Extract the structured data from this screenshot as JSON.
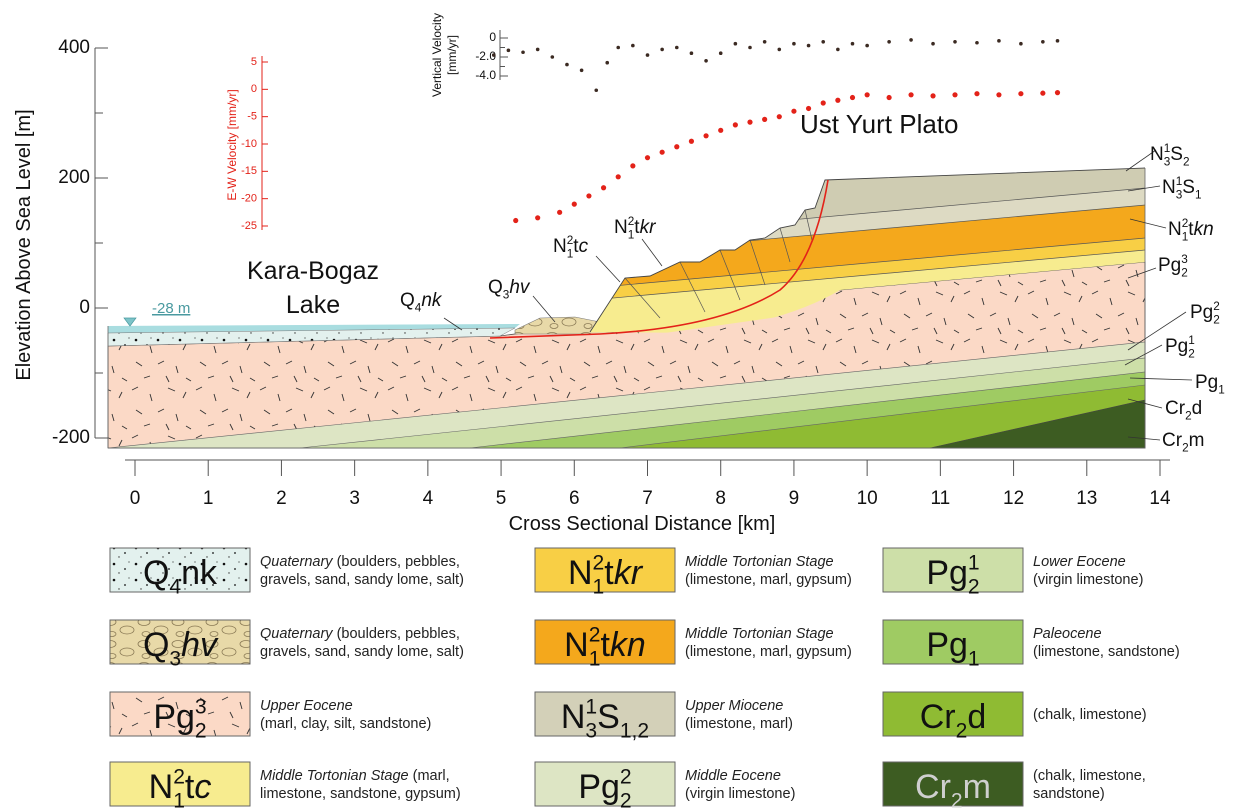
{
  "axes": {
    "y_label": "Elevation Above Sea Level [m]",
    "ylim": [
      -200,
      400
    ],
    "y_ticks": [
      400,
      200,
      0,
      -200
    ],
    "y_minor_ticks": [
      300,
      100,
      -100
    ],
    "x_label": "Cross Sectional Distance [km]",
    "xlim": [
      0,
      14
    ],
    "x_ticks": [
      0,
      1,
      2,
      3,
      4,
      5,
      6,
      7,
      8,
      9,
      10,
      11,
      12,
      13,
      14
    ]
  },
  "velocity": {
    "ew": {
      "label": "E-W Velocity [mm/yr]",
      "ylim": [
        -25,
        5
      ],
      "ticks": [
        5,
        0,
        -5,
        -10,
        -15,
        -20,
        -25
      ],
      "color": "#e32219",
      "x": [
        5.2,
        5.5,
        5.8,
        6.0,
        6.2,
        6.4,
        6.6,
        6.8,
        7.0,
        7.2,
        7.4,
        7.6,
        7.8,
        8.0,
        8.2,
        8.4,
        8.6,
        8.8,
        9.0,
        9.2,
        9.4,
        9.6,
        9.8,
        10.0,
        10.3,
        10.6,
        10.9,
        11.2,
        11.5,
        11.8,
        12.1,
        12.4,
        12.6
      ],
      "values": [
        -24,
        -23.5,
        -22.5,
        -21,
        -19.5,
        -18,
        -16,
        -14,
        -12.5,
        -11.5,
        -10.5,
        -9.5,
        -8.5,
        -7.5,
        -6.5,
        -6,
        -5.5,
        -5,
        -4,
        -3.5,
        -2.5,
        -2,
        -1.5,
        -1,
        -1.5,
        -1,
        -1.2,
        -1,
        -0.8,
        -1,
        -0.8,
        -0.7,
        -0.6
      ]
    },
    "vertical": {
      "label": [
        "Vertical Velocity",
        "[mm/yr]"
      ],
      "ylim": [
        -4,
        0
      ],
      "ticks": [
        0,
        {
          "value": -2,
          "label": "-2.0"
        },
        {
          "value": -4,
          "label": "-4.0"
        }
      ],
      "minor_ticks": [
        -1,
        -3
      ],
      "color": "#3b2a22",
      "x": [
        4.9,
        5.1,
        5.3,
        5.5,
        5.7,
        5.9,
        6.1,
        6.3,
        6.45,
        6.6,
        6.8,
        7.0,
        7.2,
        7.4,
        7.6,
        7.8,
        8.0,
        8.2,
        8.4,
        8.6,
        8.8,
        9.0,
        9.2,
        9.4,
        9.6,
        9.8,
        10.0,
        10.3,
        10.6,
        10.9,
        11.2,
        11.5,
        11.8,
        12.1,
        12.4,
        12.6
      ],
      "values": [
        -1.8,
        -1.3,
        -1.5,
        -1.2,
        -2.0,
        -2.8,
        -3.4,
        -5.5,
        -2.6,
        -1.0,
        -0.8,
        -1.8,
        -1.2,
        -1.0,
        -1.6,
        -2.4,
        -1.6,
        -0.6,
        -1.0,
        -0.4,
        -1.2,
        -0.6,
        -0.8,
        -0.4,
        -1.2,
        -0.6,
        -0.8,
        -0.4,
        -0.2,
        -0.6,
        -0.4,
        -0.5,
        -0.3,
        -0.6,
        -0.4,
        -0.3
      ]
    }
  },
  "section": {
    "title": "Ust Yurt Plato",
    "lake": [
      "Kara-Bogaz",
      "Lake"
    ],
    "water_level": "-28 m",
    "labels": [
      [
        {
          "text": "N"
        },
        {
          "sup": "1",
          "sub": "3"
        },
        {
          "text": "S"
        },
        {
          "sub": "2"
        }
      ],
      [
        {
          "text": "N"
        },
        {
          "sup": "1",
          "sub": "3"
        },
        {
          "text": "S"
        },
        {
          "sub": "1"
        }
      ],
      [
        {
          "text": "N"
        },
        {
          "sup": "2",
          "sub": "1"
        },
        {
          "text": "t"
        },
        {
          "text": "kn",
          "italic": true
        }
      ],
      [
        {
          "text": "Pg"
        },
        {
          "sup": "3",
          "sub": "2"
        }
      ],
      [
        {
          "text": "Pg"
        },
        {
          "sup": "2",
          "sub": "2"
        }
      ],
      [
        {
          "text": "Pg"
        },
        {
          "sup": "1",
          "sub": "2"
        }
      ],
      [
        {
          "text": "Pg"
        },
        {
          "sub": "1"
        }
      ],
      [
        {
          "text": "Cr"
        },
        {
          "sub": "2"
        },
        {
          "text": "d"
        }
      ],
      [
        {
          "text": "Cr"
        },
        {
          "sub": "2"
        },
        {
          "text": "m"
        }
      ],
      [
        {
          "text": "Q"
        },
        {
          "sub": "4"
        },
        {
          "text": "nk",
          "italic": true
        }
      ],
      [
        {
          "text": "Q"
        },
        {
          "sub": "3"
        },
        {
          "text": "hv",
          "italic": true
        }
      ],
      [
        {
          "text": "N"
        },
        {
          "sup": "2",
          "sub": "1"
        },
        {
          "text": "t"
        },
        {
          "text": "c",
          "italic": true
        }
      ],
      [
        {
          "text": "N"
        },
        {
          "sup": "2",
          "sub": "1"
        },
        {
          "text": "t"
        },
        {
          "text": "kr",
          "italic": true
        }
      ]
    ]
  },
  "legend": [
    {
      "formula": [
        {
          "text": "Q"
        },
        {
          "sub": "4"
        },
        {
          "text": "nk"
        }
      ],
      "lines": [
        [
          {
            "text": "Quaternary",
            "italic": true
          },
          {
            "text": " (boulders, pebbles,"
          }
        ],
        [
          {
            "text": "gravels, sand, sandy lome, salt)"
          }
        ]
      ]
    },
    {
      "formula": [
        {
          "text": "Q"
        },
        {
          "sub": "3"
        },
        {
          "text": "hv",
          "italic": true
        }
      ],
      "lines": [
        [
          {
            "text": "Quaternary",
            "italic": true
          },
          {
            "text": " (boulders, pebbles,"
          }
        ],
        [
          {
            "text": "gravels, sand, sandy lome, salt)"
          }
        ]
      ]
    },
    {
      "formula": [
        {
          "text": "Pg"
        },
        {
          "sup": "3",
          "sub": "2"
        }
      ],
      "lines": [
        [
          {
            "text": "Upper Eocene",
            "italic": true
          }
        ],
        [
          {
            "text": "(marl, clay, silt, sandstone)"
          }
        ]
      ]
    },
    {
      "formula": [
        {
          "text": "N"
        },
        {
          "sup": "2",
          "sub": "1"
        },
        {
          "text": "t"
        },
        {
          "text": "c",
          "italic": true
        }
      ],
      "lines": [
        [
          {
            "text": "Middle Tortonian Stage",
            "italic": true
          },
          {
            "text": " (marl,"
          }
        ],
        [
          {
            "text": "limestone, sandstone, gypsum)"
          }
        ]
      ]
    },
    {
      "formula": [
        {
          "text": "N"
        },
        {
          "sup": "2",
          "sub": "1"
        },
        {
          "text": "t"
        },
        {
          "text": "kr",
          "italic": true
        }
      ],
      "lines": [
        [
          {
            "text": "Middle Tortonian Stage",
            "italic": true
          }
        ],
        [
          {
            "text": "(limestone, marl, gypsum)"
          }
        ]
      ]
    },
    {
      "formula": [
        {
          "text": "N"
        },
        {
          "sup": "2",
          "sub": "1"
        },
        {
          "text": "t"
        },
        {
          "text": "kn",
          "italic": true
        }
      ],
      "lines": [
        [
          {
            "text": "Middle Tortonian Stage",
            "italic": true
          }
        ],
        [
          {
            "text": "(limestone, marl, gypsum)"
          }
        ]
      ]
    },
    {
      "formula": [
        {
          "text": "N"
        },
        {
          "sup": "1",
          "sub": "3"
        },
        {
          "text": "S"
        },
        {
          "sub": "1,2"
        }
      ],
      "lines": [
        [
          {
            "text": "Upper Miocene",
            "italic": true
          }
        ],
        [
          {
            "text": "(limestone, marl)"
          }
        ]
      ]
    },
    {
      "formula": [
        {
          "text": "Pg"
        },
        {
          "sup": "2",
          "sub": "2"
        }
      ],
      "lines": [
        [
          {
            "text": "Middle Eocene",
            "italic": true
          }
        ],
        [
          {
            "text": "(virgin limestone)"
          }
        ]
      ]
    },
    {
      "formula": [
        {
          "text": "Pg"
        },
        {
          "sup": "1",
          "sub": "2"
        }
      ],
      "lines": [
        [
          {
            "text": "Lower Eocene",
            "italic": true
          }
        ],
        [
          {
            "text": "(virgin limestone)"
          }
        ]
      ]
    },
    {
      "formula": [
        {
          "text": "Pg"
        },
        {
          "sub": "1"
        }
      ],
      "lines": [
        [
          {
            "text": "Paleocene",
            "italic": true
          }
        ],
        [
          {
            "text": "(limestone, sandstone)"
          }
        ]
      ]
    },
    {
      "formula": [
        {
          "text": "Cr"
        },
        {
          "sub": "2"
        },
        {
          "text": "d"
        }
      ],
      "lines": [
        [
          {
            "text": "(chalk, limestone)"
          }
        ]
      ]
    },
    {
      "formula": [
        {
          "text": "Cr"
        },
        {
          "sub": "2"
        },
        {
          "text": "m"
        }
      ],
      "lines": [
        [
          {
            "text": "(chalk, limestone,"
          }
        ],
        [
          {
            "text": "sandstone)"
          }
        ]
      ]
    }
  ]
}
